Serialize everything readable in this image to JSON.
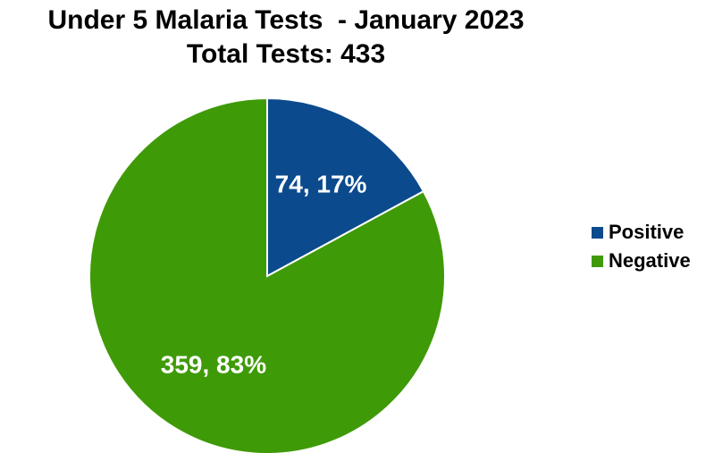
{
  "chart_data": {
    "type": "pie",
    "title": "Under 5 Malaria Tests  - January 2023",
    "subtitle": "Total Tests: 433",
    "slices": [
      {
        "name": "Positive",
        "value": 74,
        "percent": 17,
        "label": "74, 17%",
        "color": "#0b4a8c"
      },
      {
        "name": "Negative",
        "value": 359,
        "percent": 83,
        "label": "359, 83%",
        "color": "#3f9a07"
      }
    ],
    "legend_position": "right",
    "label_color": "#ffffff"
  }
}
